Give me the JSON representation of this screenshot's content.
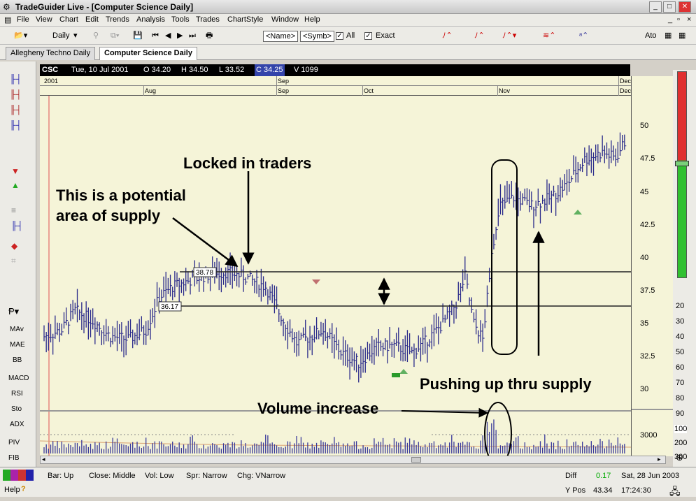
{
  "window": {
    "title": "TradeGuider Live - [Computer Science Daily]"
  },
  "menu": [
    "File",
    "View",
    "Chart",
    "Edit",
    "Trends",
    "Analysis",
    "Tools",
    "Trades",
    "ChartStyle",
    "Window",
    "Help"
  ],
  "toolbar": {
    "daily": "Daily",
    "name_box": "<Name>",
    "symb_box": "<Symb>",
    "all_label": "All",
    "exact_label": "Exact",
    "auto_label": "Ato"
  },
  "tabs": [
    "Allegheny Techno Daily",
    "Computer Science Daily"
  ],
  "left_indicators": [
    "MAv",
    "MAE",
    "BB",
    "MACD",
    "RSI",
    "Sto",
    "ADX",
    "PIV",
    "FIB"
  ],
  "info": {
    "symbol": "CSC",
    "date": "Tue, 10 Jul 2001",
    "open": "O 34.20",
    "high": "H 34.50",
    "low": "L 33.52",
    "close": "C 34.25",
    "volume": "V 1099"
  },
  "dates": {
    "year": "2001",
    "aug": "Aug",
    "sep1": "Sep",
    "sep2": "Sep",
    "oct": "Oct",
    "nov": "Nov",
    "dec1": "Dec",
    "dec2": "Dec"
  },
  "price_axis": [
    "50",
    "47.5",
    "45",
    "42.5",
    "40",
    "37.5",
    "35",
    "32.5",
    "30"
  ],
  "volume_axis": "3000",
  "right_scale": [
    "20",
    "30",
    "40",
    "50",
    "60",
    "70",
    "80",
    "90",
    "100",
    "200",
    "300"
  ],
  "levels": {
    "upper": "38.78",
    "lower": "36.17"
  },
  "annotations": {
    "locked": "Locked in traders",
    "supply1": "This is a potential",
    "supply2": "area of supply",
    "pushing": "Pushing up thru supply",
    "volume": "Volume increase"
  },
  "status": {
    "bar": "Bar: Up",
    "close": "Close: Middle",
    "vol": "Vol: Low",
    "spr": "Spr: Narrow",
    "chg": "Chg: VNarrow",
    "diff_label": "Diff",
    "diff_val": "0.17",
    "date": "Sat, 28 Jun 2003",
    "ypos_label": "Y Pos",
    "ypos_val": "43.34",
    "time": "17:24:30",
    "help": "Help"
  },
  "colors": {
    "chart_bg": "#f5f4d8",
    "bar": "#2a2a8a",
    "volume": "#3a3a9a",
    "gauge_red": "#e03030",
    "gauge_green": "#30c030"
  }
}
